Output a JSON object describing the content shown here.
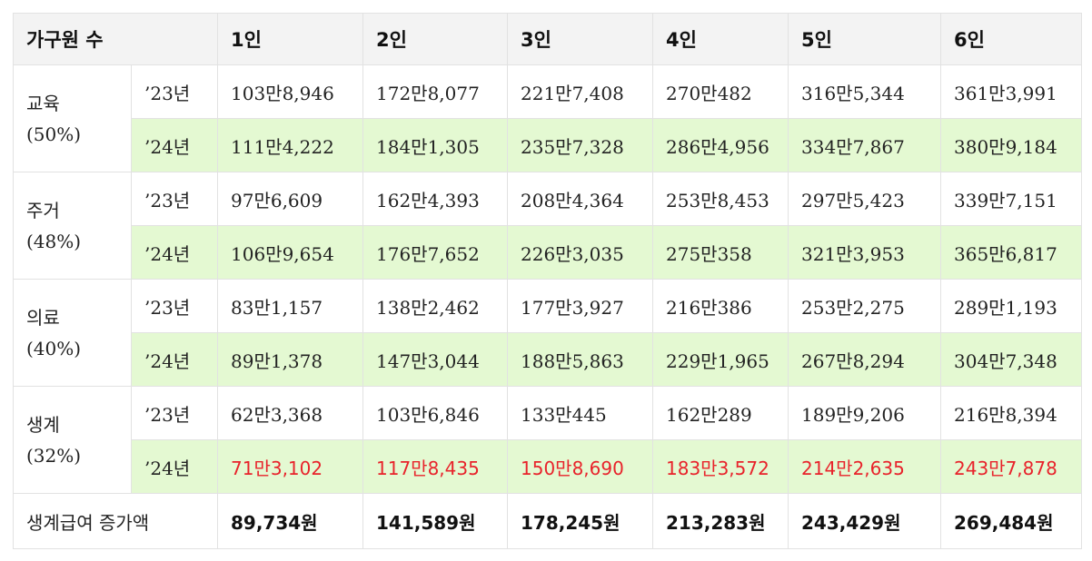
{
  "header": {
    "label": "가구원 수",
    "columns": [
      "1인",
      "2인",
      "3인",
      "4인",
      "5인",
      "6인"
    ]
  },
  "groups": [
    {
      "name": "교육",
      "pct": "(50%)",
      "rows": [
        {
          "year": "’23년",
          "values": [
            "103만8,946",
            "172만8,077",
            "221만7,408",
            "270만482",
            "316만5,344",
            "361만3,991"
          ]
        },
        {
          "year": "’24년",
          "values": [
            "111만4,222",
            "184만1,305",
            "235만7,328",
            "286만4,956",
            "334만7,867",
            "380만9,184"
          ]
        }
      ]
    },
    {
      "name": "주거",
      "pct": "(48%)",
      "rows": [
        {
          "year": "’23년",
          "values": [
            "97만6,609",
            "162만4,393",
            "208만4,364",
            "253만8,453",
            "297만5,423",
            "339만7,151"
          ]
        },
        {
          "year": "’24년",
          "values": [
            "106만9,654",
            "176만7,652",
            "226만3,035",
            "275만358",
            "321만3,953",
            "365만6,817"
          ]
        }
      ]
    },
    {
      "name": "의료",
      "pct": "(40%)",
      "rows": [
        {
          "year": "’23년",
          "values": [
            "83만1,157",
            "138만2,462",
            "177만3,927",
            "216만386",
            "253만2,275",
            "289만1,193"
          ]
        },
        {
          "year": "’24년",
          "values": [
            "89만1,378",
            "147만3,044",
            "188만5,863",
            "229만1,965",
            "267만8,294",
            "304만7,348"
          ]
        }
      ]
    },
    {
      "name": "생계",
      "pct": "(32%)",
      "rows": [
        {
          "year": "’23년",
          "values": [
            "62만3,368",
            "103만6,846",
            "133만445",
            "162만289",
            "189만9,206",
            "216만8,394"
          ]
        },
        {
          "year": "’24년",
          "values": [
            "71만3,102",
            "117만8,435",
            "150만8,690",
            "183만3,572",
            "214만2,635",
            "243만7,878"
          ],
          "highlight": true
        }
      ]
    }
  ],
  "footer": {
    "label": "생계급여 증가액",
    "values": [
      "89,734원",
      "141,589원",
      "178,245원",
      "213,283원",
      "243,429원",
      "269,484원"
    ]
  },
  "colors": {
    "header_bg": "#f3f3f3",
    "row_2024_bg": "#e4f9d2",
    "highlight_text": "#e8232b",
    "border": "#e2e2e2"
  }
}
